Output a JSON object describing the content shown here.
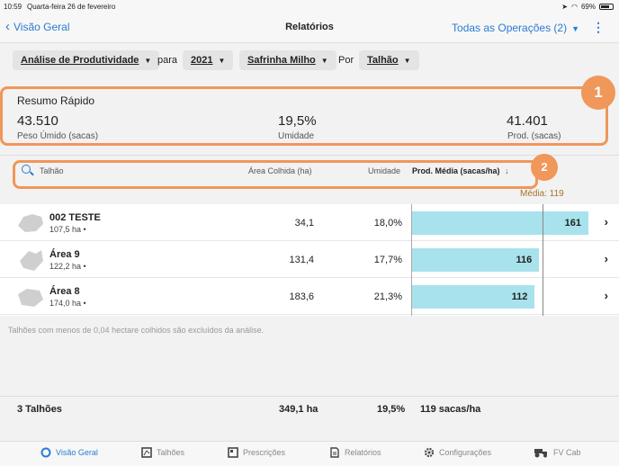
{
  "status_bar": {
    "time": "10:59",
    "date": "Quarta-feira 26 de fevereiro",
    "battery": "69%"
  },
  "nav": {
    "back_label": "Visão Geral",
    "title": "Relatórios",
    "operations_label": "Todas as Operações (2)"
  },
  "filters": {
    "report": "Análise de Produtividade",
    "para_label": "para",
    "year": "2021",
    "crop": "Safrinha Milho",
    "por_label": "Por",
    "group_by": "Talhão"
  },
  "summary": {
    "title": "Resumo Rápido",
    "metrics": [
      {
        "value": "43.510",
        "label": "Peso Úmido (sacas)"
      },
      {
        "value": "19,5%",
        "label": "Umidade"
      },
      {
        "value": "41.401",
        "label": "Prod. (sacas)"
      }
    ],
    "badge": "1"
  },
  "table": {
    "headers": {
      "talhao": "Talhão",
      "area": "Área Colhida (ha)",
      "umidade": "Umidade",
      "prod": "Prod. Média (sacas/ha)"
    },
    "sort_arrow": "↓",
    "badge": "2",
    "media_label": "Média: 119",
    "media_value": 119,
    "bar_max": 161,
    "rows": [
      {
        "name": "002 TESTE",
        "size": "107,5 ha •",
        "area": "34,1",
        "umidade": "18,0%",
        "prod": "161",
        "prod_value": 161
      },
      {
        "name": "Área 9",
        "size": "122,2 ha •",
        "area": "131,4",
        "umidade": "17,7%",
        "prod": "116",
        "prod_value": 116
      },
      {
        "name": "Área 8",
        "size": "174,0 ha •",
        "area": "183,6",
        "umidade": "21,3%",
        "prod": "112",
        "prod_value": 112
      }
    ],
    "note": "Talhões com menos de 0,04 hectare colhidos são excluídos da análise."
  },
  "totals": {
    "count": "3 Talhões",
    "area": "349,1 ha",
    "umidade": "19,5%",
    "prod": "119 sacas/ha"
  },
  "tabs": [
    {
      "label": "Visão Geral",
      "icon": "circle-icon",
      "active": true
    },
    {
      "label": "Talhões",
      "icon": "field-icon",
      "active": false
    },
    {
      "label": "Prescrições",
      "icon": "prescription-icon",
      "active": false
    },
    {
      "label": "Relatórios",
      "icon": "document-icon",
      "active": false
    },
    {
      "label": "Configurações",
      "icon": "gear-icon",
      "active": false
    },
    {
      "label": "FV Cab",
      "icon": "tractor-icon",
      "active": false
    }
  ],
  "colors": {
    "accent": "#2a7bd3",
    "highlight": "#f0975a",
    "bar": "#a8e2ec",
    "media_line": "#888888"
  }
}
